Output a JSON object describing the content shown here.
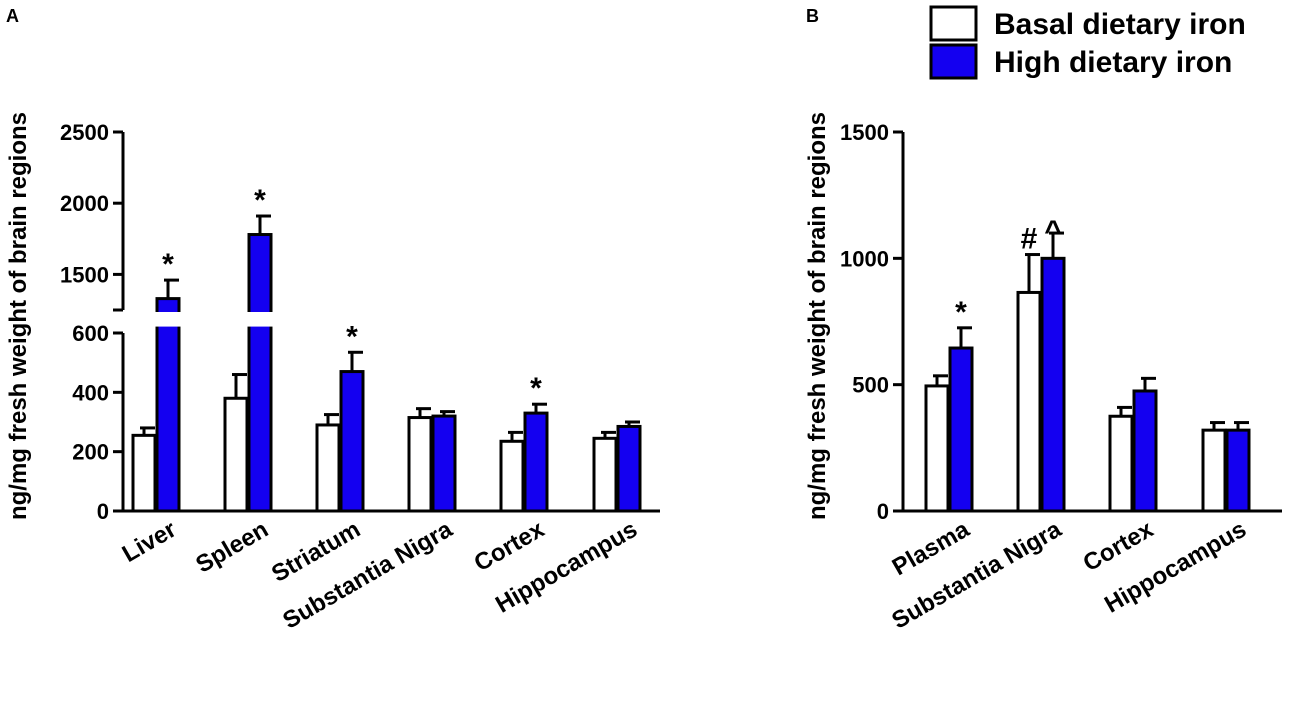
{
  "colors": {
    "basal": "#ffffff",
    "high": "#1400f0",
    "stroke": "#000000"
  },
  "legend": [
    {
      "label": "Basal dietary iron",
      "color": "#ffffff"
    },
    {
      "label": "High dietary iron",
      "color": "#1400f0"
    }
  ],
  "chart_data": [
    {
      "type": "bar",
      "panel": "A",
      "title": "",
      "ylabel": "ng/mg fresh weight of brain regions",
      "xlabel": "",
      "categories": [
        "Liver",
        "Spleen",
        "Striatum",
        "Substantia Nigra",
        "Cortex",
        "Hippocampus"
      ],
      "axis_break": {
        "lower_range": [
          0,
          600
        ],
        "upper_range": [
          1250,
          2500
        ]
      },
      "lower_ticks": [
        "0",
        "200",
        "400",
        "600"
      ],
      "upper_ticks": [
        "1500",
        "2000",
        "2500"
      ],
      "series": [
        {
          "name": "Basal dietary iron",
          "values": [
            255,
            380,
            290,
            315,
            235,
            245
          ],
          "errors": [
            25,
            80,
            35,
            30,
            30,
            20
          ]
        },
        {
          "name": "High dietary iron",
          "values": [
            1330,
            1780,
            470,
            320,
            330,
            285
          ],
          "errors": [
            130,
            130,
            65,
            15,
            30,
            15
          ]
        }
      ],
      "annotations": [
        {
          "category": "Liver",
          "series": "High dietary iron",
          "text": "*"
        },
        {
          "category": "Spleen",
          "series": "High dietary iron",
          "text": "*"
        },
        {
          "category": "Striatum",
          "series": "High dietary iron",
          "text": "*"
        },
        {
          "category": "Cortex",
          "series": "High dietary iron",
          "text": "*"
        }
      ]
    },
    {
      "type": "bar",
      "panel": "B",
      "title": "",
      "ylabel": "ng/mg fresh weight of brain regions",
      "xlabel": "",
      "categories": [
        "Plasma",
        "Substantia Nigra",
        "Cortex",
        "Hippocampus"
      ],
      "ylim": [
        0,
        1500
      ],
      "ticks": [
        "0",
        "500",
        "1000",
        "1500"
      ],
      "series": [
        {
          "name": "Basal dietary iron",
          "values": [
            495,
            865,
            375,
            320
          ],
          "errors": [
            40,
            150,
            35,
            30
          ]
        },
        {
          "name": "High dietary iron",
          "values": [
            645,
            1000,
            475,
            320
          ],
          "errors": [
            80,
            100,
            50,
            30
          ]
        }
      ],
      "annotations": [
        {
          "category": "Plasma",
          "series": "High dietary iron",
          "text": "*"
        },
        {
          "category": "Substantia Nigra",
          "series": "Basal dietary iron",
          "text": "#"
        },
        {
          "category": "Substantia Nigra",
          "series": "High dietary iron",
          "text": "^"
        }
      ]
    }
  ]
}
